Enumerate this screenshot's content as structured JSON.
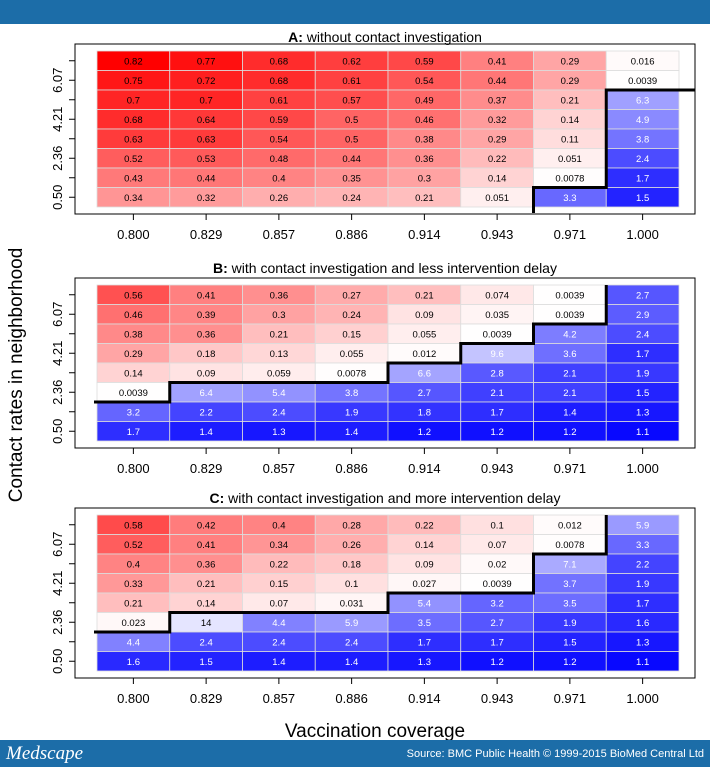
{
  "footer": {
    "logo": "Medscape",
    "source": "Source: BMC Public Health © 1999-2015 BioMed Central Ltd"
  },
  "colors": {
    "header": "#1c6da8",
    "high": "#ff0000",
    "low": "#0000ff",
    "boundary": "#000000"
  },
  "chart_data": {
    "type": "heatmap",
    "xlabel": "Vaccination coverage",
    "ylabel": "Contact rates in neighborhood",
    "x_ticks": [
      "0.800",
      "0.829",
      "0.857",
      "0.886",
      "0.914",
      "0.943",
      "0.971",
      "1.000"
    ],
    "y_ticks": [
      "0.50",
      "2.36",
      "4.21",
      "6.07"
    ],
    "panels": [
      {
        "label": "A:",
        "title": " without contact investigation",
        "blue_rows_from_bottom": [
          0,
          0,
          0,
          0,
          0,
          0,
          1,
          6
        ],
        "rows_top_to_bottom": [
          [
            "0.82",
            "0.77",
            "0.68",
            "0.62",
            "0.59",
            "0.41",
            "0.29",
            "0.016"
          ],
          [
            "0.75",
            "0.72",
            "0.68",
            "0.61",
            "0.54",
            "0.44",
            "0.29",
            "0.0039"
          ],
          [
            "0.7",
            "0.7",
            "0.61",
            "0.57",
            "0.49",
            "0.37",
            "0.21",
            "6.3"
          ],
          [
            "0.68",
            "0.64",
            "0.59",
            "0.5",
            "0.46",
            "0.32",
            "0.14",
            "4.9"
          ],
          [
            "0.63",
            "0.63",
            "0.54",
            "0.5",
            "0.38",
            "0.29",
            "0.11",
            "3.8"
          ],
          [
            "0.52",
            "0.53",
            "0.48",
            "0.44",
            "0.36",
            "0.22",
            "0.051",
            "2.4"
          ],
          [
            "0.43",
            "0.44",
            "0.4",
            "0.35",
            "0.3",
            "0.14",
            "0.0078",
            "1.7"
          ],
          [
            "0.34",
            "0.32",
            "0.26",
            "0.24",
            "0.21",
            "0.051",
            "3.3",
            "1.5"
          ]
        ]
      },
      {
        "label": "B:",
        "title": " with contact investigation and less intervention delay",
        "blue_rows_from_bottom": [
          2,
          3,
          3,
          3,
          4,
          5,
          6,
          8
        ],
        "rows_top_to_bottom": [
          [
            "0.56",
            "0.41",
            "0.36",
            "0.27",
            "0.21",
            "0.074",
            "0.0039",
            "2.7"
          ],
          [
            "0.46",
            "0.39",
            "0.3",
            "0.24",
            "0.09",
            "0.035",
            "0.0039",
            "2.9"
          ],
          [
            "0.38",
            "0.36",
            "0.21",
            "0.15",
            "0.055",
            "0.0039",
            "4.2",
            "2.4"
          ],
          [
            "0.29",
            "0.18",
            "0.13",
            "0.055",
            "0.012",
            "9.6",
            "3.6",
            "1.7"
          ],
          [
            "0.14",
            "0.09",
            "0.059",
            "0.0078",
            "6.6",
            "2.8",
            "2.1",
            "1.9"
          ],
          [
            "0.0039",
            "6.4",
            "5.4",
            "3.8",
            "2.7",
            "2.1",
            "2.1",
            "1.5"
          ],
          [
            "3.2",
            "2.2",
            "2.4",
            "1.9",
            "1.8",
            "1.7",
            "1.4",
            "1.3"
          ],
          [
            "1.7",
            "1.4",
            "1.3",
            "1.4",
            "1.2",
            "1.2",
            "1.2",
            "1.1"
          ]
        ]
      },
      {
        "label": "C:",
        "title": " with contact investigation and more intervention delay",
        "blue_rows_from_bottom": [
          2,
          3,
          3,
          3,
          4,
          4,
          6,
          8
        ],
        "rows_top_to_bottom": [
          [
            "0.58",
            "0.42",
            "0.4",
            "0.28",
            "0.22",
            "0.1",
            "0.012",
            "5.9"
          ],
          [
            "0.52",
            "0.41",
            "0.34",
            "0.26",
            "0.14",
            "0.07",
            "0.0078",
            "3.3"
          ],
          [
            "0.4",
            "0.36",
            "0.22",
            "0.18",
            "0.09",
            "0.02",
            "7.1",
            "2.2"
          ],
          [
            "0.33",
            "0.21",
            "0.15",
            "0.1",
            "0.027",
            "0.0039",
            "3.7",
            "1.9"
          ],
          [
            "0.21",
            "0.14",
            "0.07",
            "0.031",
            "5.4",
            "3.2",
            "3.5",
            "1.7"
          ],
          [
            "0.023",
            "14",
            "4.4",
            "5.9",
            "3.5",
            "2.7",
            "1.9",
            "1.6"
          ],
          [
            "4.4",
            "2.4",
            "2.4",
            "2.4",
            "1.7",
            "1.7",
            "1.5",
            "1.3"
          ],
          [
            "1.6",
            "1.5",
            "1.4",
            "1.4",
            "1.3",
            "1.2",
            "1.2",
            "1.1"
          ]
        ]
      }
    ]
  }
}
